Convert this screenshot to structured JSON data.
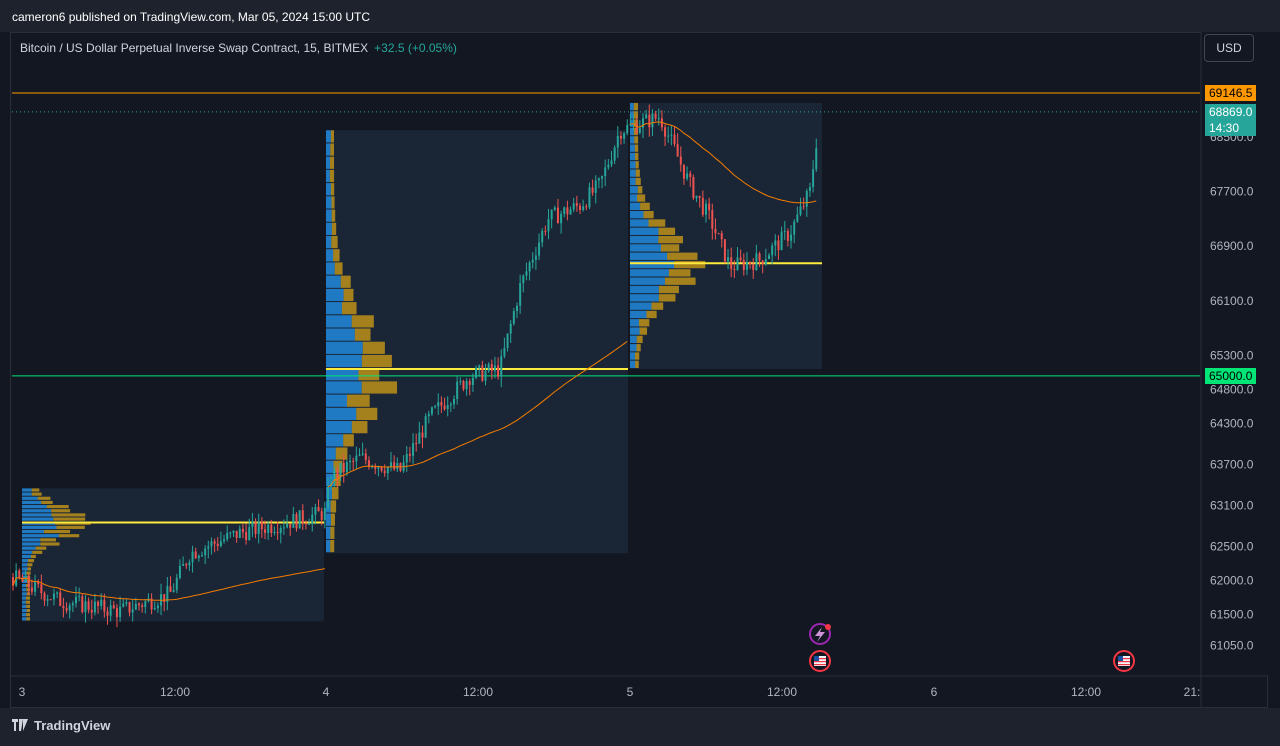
{
  "header": {
    "published": "cameron6 published on TradingView.com, Mar 05, 2024 15:00 UTC"
  },
  "symbol": {
    "title": "Bitcoin / US Dollar Perpetual Inverse Swap Contract, 15, BITMEX",
    "change": "+32.5 (+0.05%)"
  },
  "currency_button": "USD",
  "footer": {
    "brand": "TradingView"
  },
  "colors": {
    "background": "#131722",
    "up": "#26a69a",
    "down": "#ef5350",
    "resistance": "#ff9800",
    "support": "#00e676",
    "poc": "#ffeb3b",
    "vwap": "#f57c00",
    "profile_blue": "#2196f3",
    "profile_gold": "#d4a017"
  },
  "price_tags": {
    "resistance": {
      "label": "69146.5",
      "color": "#ff9800"
    },
    "last": {
      "label": "68869.0",
      "countdown": "14:30",
      "color": "#26a69a"
    },
    "support": {
      "label": "65000.0",
      "color": "#00e676"
    }
  },
  "icons": [
    "lightning-event-icon",
    "us-flag-event-icon",
    "us-flag-event-icon"
  ],
  "chart_data": {
    "type": "candlestick",
    "y_ticks": [
      "68500.0",
      "67700.0",
      "66900.0",
      "66100.0",
      "65300.0",
      "64800.0",
      "64300.0",
      "63700.0",
      "63100.0",
      "62500.0",
      "62000.0",
      "61500.0",
      "61050.0"
    ],
    "x_ticks": [
      "3",
      "12:00",
      "4",
      "12:00",
      "5",
      "12:00",
      "6",
      "12:00",
      "21:"
    ],
    "ylim": [
      60600,
      69600
    ],
    "horizontal_levels": [
      {
        "name": "resistance",
        "value": 69146.5
      },
      {
        "name": "support",
        "value": 65000.0
      }
    ],
    "sessions": [
      {
        "label": "3",
        "poc": 62850,
        "high": 63350,
        "low": 61400
      },
      {
        "label": "4",
        "poc": 65100,
        "high": 68600,
        "low": 62400
      },
      {
        "label": "5",
        "poc": 66650,
        "high": 69000,
        "low": 65100
      }
    ],
    "last_price": 68869.0
  }
}
